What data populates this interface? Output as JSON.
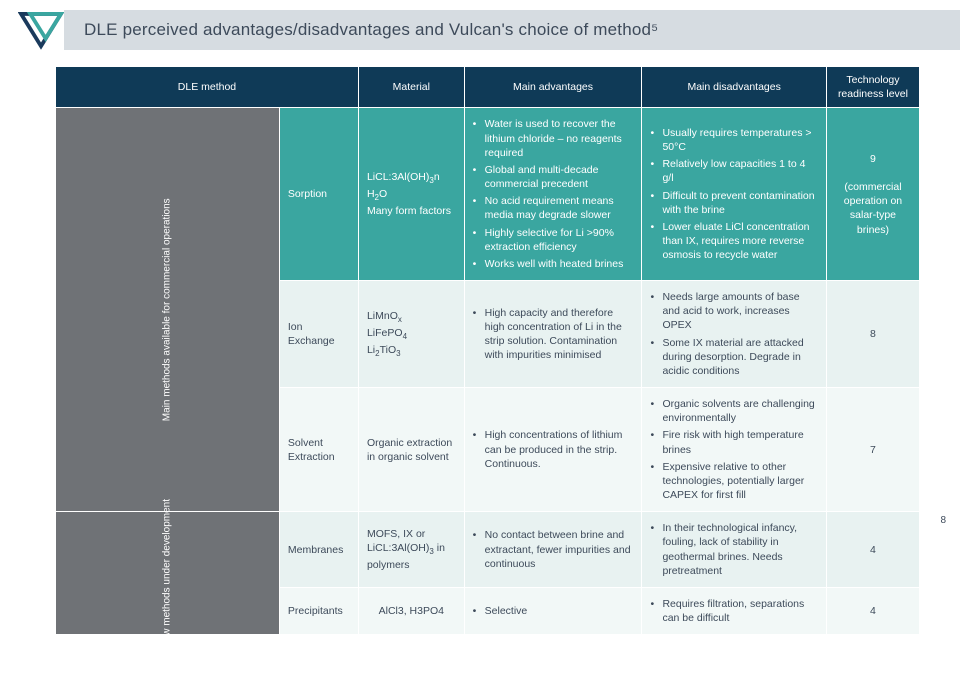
{
  "header": {
    "title": "DLE perceived advantages/disadvantages and Vulcan's choice of method⁵"
  },
  "columns": {
    "c1": "DLE method",
    "c2": "Material",
    "c3": "Main advantages",
    "c4": "Main disadvantages",
    "c5_a": "Technology",
    "c5_b": "readiness level"
  },
  "groups": {
    "g1": "Main methods available for commercial operations",
    "g2": "New methods under development"
  },
  "rows": [
    {
      "method": "Sorption",
      "material_html": "LiCL:3Al(OH)<span class='sub'>3</span>n<br>H<span class='sub'>2</span>O<br>Many form factors",
      "adv": [
        "Water is used to recover the lithium chloride – no reagents required",
        "Global and multi-decade commercial precedent",
        "No acid requirement means media may degrade slower",
        "Highly selective for Li >90% extraction efficiency",
        "Works well with heated brines"
      ],
      "dis": [
        "Usually requires temperatures > 50°C",
        "Relatively low capacities 1 to 4 g/l",
        "Difficult to prevent contamination with the brine",
        "Lower eluate LiCl concentration than IX, requires more reverse osmosis to recycle water"
      ],
      "trl_html": "9<br><br>(commercial operation on salar-type brines)"
    },
    {
      "method": "Ion Exchange",
      "material_html": "LiMnO<span class='sub'>x</span><br>LiFePO<span class='sub'>4</span><br>Li<span class='sub'>2</span>TiO<span class='sub'>3</span>",
      "adv": [
        "High capacity  and therefore high concentration of Li in the strip solution.  Contamination with impurities minimised"
      ],
      "dis": [
        "Needs large amounts of base and acid to work, increases OPEX",
        "Some IX material are attacked during desorption. Degrade in acidic conditions"
      ],
      "trl_html": "8"
    },
    {
      "method": "Solvent Extraction",
      "material_html": "Organic extraction in organic solvent",
      "adv": [
        "High concentrations of lithium can be produced in the strip. Continuous."
      ],
      "dis": [
        "Organic solvents are challenging environmentally",
        "Fire risk with high temperature brines",
        "Expensive relative to other technologies, potentially larger CAPEX for first fill"
      ],
      "trl_html": "7"
    },
    {
      "method": "Membranes",
      "material_html": "MOFS, IX or LiCL:3Al(OH)<span class='sub'>3</span> in polymers",
      "adv": [
        "No contact between brine and extractant, fewer impurities and continuous"
      ],
      "dis": [
        "In their technological infancy, fouling, lack of stability in geothermal brines. Needs pretreatment"
      ],
      "trl_html": "4"
    },
    {
      "method": "Precipitants",
      "material_html": "AlCl3, H3PO4",
      "adv": [
        "Selective"
      ],
      "dis": [
        "Requires filtration, separations can be difficult"
      ],
      "trl_html": "4"
    }
  ],
  "pageNumber": "8",
  "colors": {
    "header_bg": "#d6dce1",
    "thead_bg": "#0f3a57",
    "group_bg": "#6f7276",
    "row_teal": "#3aa6a0",
    "row_light": "#e8f2f1",
    "row_pale": "#f2f8f7"
  }
}
